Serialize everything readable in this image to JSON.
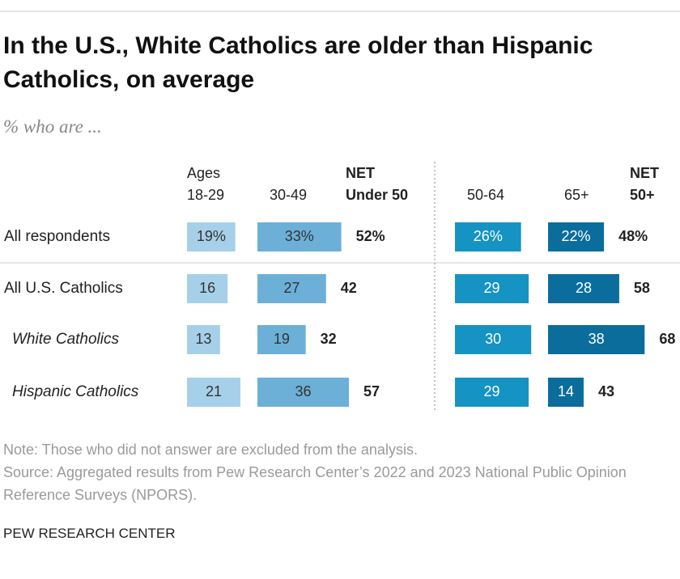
{
  "chart_data": {
    "type": "bar",
    "title": "In the U.S., White Catholics are older than Hispanic Catholics, on average",
    "subtitle": "% who are ...",
    "categories": [
      "All respondents",
      "All U.S. Catholics",
      "White Catholics",
      "Hispanic Catholics"
    ],
    "indented": [
      false,
      false,
      true,
      true
    ],
    "series": [
      {
        "name": [
          "Ages",
          "18-29"
        ],
        "color": "#a6d0e9",
        "label_color": "#333333",
        "values": [
          19,
          16,
          13,
          21
        ],
        "value_labels": [
          "19%",
          "16",
          "13",
          "21"
        ]
      },
      {
        "name": [
          "30-49"
        ],
        "color": "#6cb0d8",
        "label_color": "#333333",
        "values": [
          33,
          27,
          19,
          36
        ],
        "value_labels": [
          "33%",
          "27",
          "19",
          "36"
        ]
      },
      {
        "name": [
          "NET",
          "Under 50"
        ],
        "values": [
          52,
          42,
          32,
          57
        ],
        "value_labels": [
          "52%",
          "42",
          "32",
          "57"
        ]
      },
      {
        "name": [
          "50-64"
        ],
        "color": "#1593c2",
        "label_color": "#ffffff",
        "values": [
          26,
          29,
          30,
          29
        ],
        "value_labels": [
          "26%",
          "29",
          "30",
          "29"
        ]
      },
      {
        "name": [
          "65+"
        ],
        "color": "#0b6d9c",
        "label_color": "#ffffff",
        "values": [
          22,
          28,
          38,
          14
        ],
        "value_labels": [
          "22%",
          "28",
          "38",
          "14"
        ]
      },
      {
        "name": [
          "NET",
          "50+"
        ],
        "values": [
          48,
          58,
          68,
          43
        ],
        "value_labels": [
          "48%",
          "58",
          "68",
          "43"
        ]
      }
    ],
    "note": "Note: Those who did not answer are excluded from the analysis.",
    "source": "Source: Aggregated results from Pew Research Center’s 2022 and 2023 National Public Opinion Reference Surveys (NPORS).",
    "credit": "PEW RESEARCH CENTER"
  }
}
